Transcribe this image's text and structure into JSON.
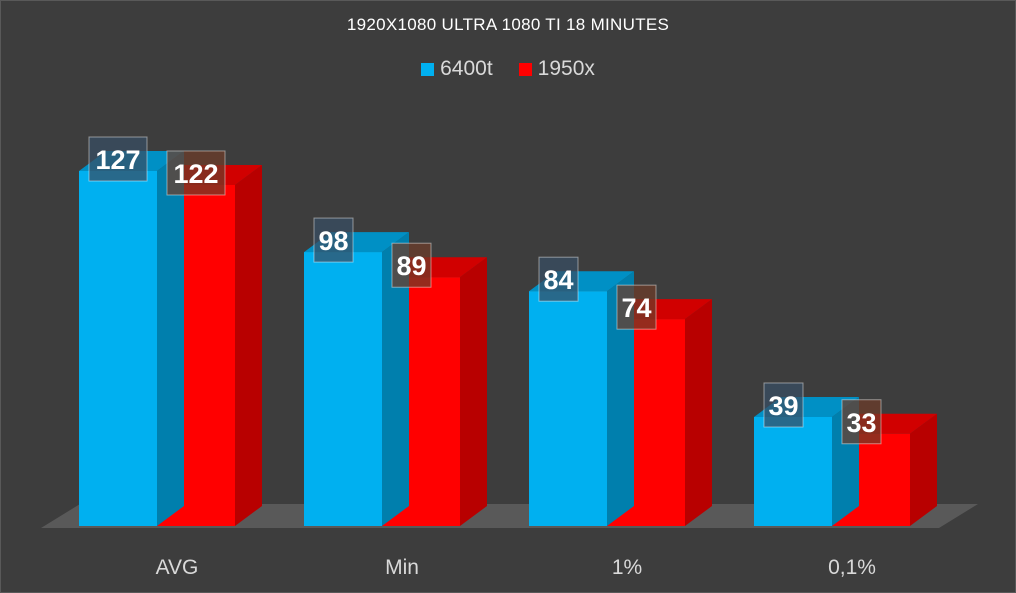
{
  "chart_data": {
    "type": "bar",
    "title": "1920X1080 ULTRA 1080 TI 18 MINUTES",
    "categories": [
      "AVG",
      "Min",
      "1%",
      "0,1%"
    ],
    "series": [
      {
        "name": "6400t",
        "color": "#00b0f0",
        "values": [
          127,
          98,
          84,
          39
        ]
      },
      {
        "name": "1950x",
        "color": "#ff0000",
        "values": [
          122,
          89,
          74,
          33
        ]
      }
    ],
    "ylim": [
      0,
      127
    ],
    "legend_position": "top-center",
    "grid": false
  }
}
